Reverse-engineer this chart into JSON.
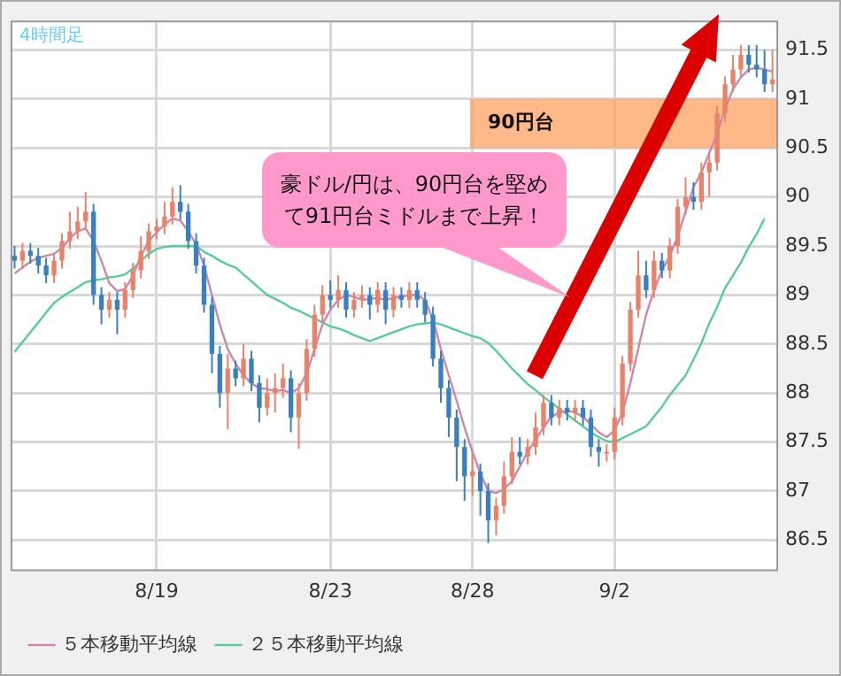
{
  "chart_data": {
    "type": "candlestick",
    "title": "4時間足",
    "categories": [
      null,
      null,
      null,
      null,
      null,
      null,
      null,
      null,
      null,
      null,
      null,
      null,
      null,
      null,
      null,
      null,
      null,
      null,
      "8/19",
      null,
      null,
      null,
      null,
      null,
      null,
      null,
      null,
      null,
      null,
      null,
      null,
      null,
      null,
      null,
      null,
      null,
      null,
      null,
      null,
      null,
      "8/23",
      null,
      null,
      null,
      null,
      null,
      null,
      null,
      null,
      null,
      null,
      null,
      null,
      null,
      null,
      null,
      null,
      null,
      "8/28",
      null,
      null,
      null,
      null,
      null,
      null,
      null,
      null,
      null,
      null,
      null,
      null,
      null,
      null,
      null,
      null,
      null,
      "9/2",
      null,
      null,
      null,
      null,
      null,
      null,
      null,
      null,
      null,
      null,
      null,
      null,
      null,
      null,
      null,
      null,
      null,
      null,
      null,
      null
    ],
    "colors": [
      "#3a7fc0",
      "#e8826a",
      "#3a7fc0",
      "#3a7fc0",
      "#3a7fc0",
      "#e8826a",
      "#e8826a",
      "#e8826a",
      "#e8826a",
      "#e8826a",
      "#3a7fc0",
      "#3a7fc0",
      "#e8826a",
      "#3a7fc0",
      "#e8826a",
      "#e8826a",
      "#e8826a",
      "#e8826a",
      "#e8826a",
      "#e8826a",
      "#e8826a",
      "#3a7fc0",
      "#3a7fc0",
      "#3a7fc0",
      "#3a7fc0",
      "#3a7fc0",
      "#3a7fc0",
      "#e8826a",
      "#3a7fc0",
      "#e8826a",
      "#3a7fc0",
      "#3a7fc0",
      "#e8826a",
      "#e8826a",
      "#e8826a",
      "#3a7fc0",
      "#e8826a",
      "#e8826a",
      "#e8826a",
      "#e8826a",
      "#3a7fc0",
      "#e8826a",
      "#3a7fc0",
      "#e8826a",
      "#e8826a",
      "#3a7fc0",
      "#e8826a",
      "#3a7fc0",
      "#e8826a",
      "#3a7fc0",
      "#e8826a",
      "#3a7fc0",
      "#3a7fc0",
      "#3a7fc0",
      "#3a7fc0",
      "#3a7fc0",
      "#3a7fc0",
      "#3a7fc0",
      "#e8826a",
      "#3a7fc0",
      "#3a7fc0",
      "#e8826a",
      "#e8826a",
      "#e8826a",
      "#3a7fc0",
      "#e8826a",
      "#e8826a",
      "#e8826a",
      "#3a7fc0",
      "#e8826a",
      "#3a7fc0",
      "#e8826a",
      "#3a7fc0",
      "#3a7fc0",
      "#3a7fc0",
      "#e8826a",
      "#e8826a",
      "#e8826a",
      "#e8826a",
      "#e8826a",
      "#3a7fc0",
      "#e8826a",
      "#3a7fc0",
      "#e8826a",
      "#e8826a",
      "#e8826a",
      "#3a7fc0",
      "#e8826a",
      "#e8826a",
      "#e8826a",
      "#e8826a",
      "#e8826a",
      "#e8826a",
      "#3a7fc0",
      "#3a7fc0",
      "#3a7fc0",
      "#e8826a"
    ],
    "ohlc": [
      [
        89.4,
        89.5,
        89.27,
        89.35
      ],
      [
        89.35,
        89.53,
        89.27,
        89.45
      ],
      [
        89.45,
        89.53,
        89.32,
        89.4
      ],
      [
        89.4,
        89.48,
        89.22,
        89.3
      ],
      [
        89.3,
        89.38,
        89.12,
        89.2
      ],
      [
        89.2,
        89.43,
        89.12,
        89.35
      ],
      [
        89.35,
        89.63,
        89.27,
        89.55
      ],
      [
        89.55,
        89.85,
        89.47,
        89.65
      ],
      [
        89.65,
        89.9,
        89.57,
        89.75
      ],
      [
        89.75,
        90.05,
        89.67,
        89.85
      ],
      [
        89.85,
        89.93,
        88.9,
        89.0
      ],
      [
        89.0,
        89.08,
        88.7,
        88.85
      ],
      [
        88.85,
        89.03,
        88.77,
        88.95
      ],
      [
        88.95,
        89.03,
        88.6,
        88.85
      ],
      [
        88.85,
        89.13,
        88.77,
        89.05
      ],
      [
        89.05,
        89.33,
        88.97,
        89.25
      ],
      [
        89.25,
        89.6,
        89.17,
        89.45
      ],
      [
        89.45,
        89.73,
        89.37,
        89.65
      ],
      [
        89.65,
        89.78,
        89.57,
        89.7
      ],
      [
        89.7,
        89.95,
        89.62,
        89.8
      ],
      [
        89.8,
        90.1,
        89.72,
        89.95
      ],
      [
        89.95,
        90.12,
        89.77,
        89.85
      ],
      [
        89.85,
        89.93,
        89.47,
        89.55
      ],
      [
        89.55,
        89.63,
        89.22,
        89.3
      ],
      [
        89.3,
        89.38,
        88.82,
        88.9
      ],
      [
        88.9,
        88.98,
        88.2,
        88.4
      ],
      [
        88.4,
        88.48,
        87.85,
        88.0
      ],
      [
        88.0,
        88.4,
        87.63,
        88.25
      ],
      [
        88.25,
        88.33,
        88.07,
        88.15
      ],
      [
        88.15,
        88.5,
        88.07,
        88.35
      ],
      [
        88.35,
        88.43,
        88.02,
        88.1
      ],
      [
        88.1,
        88.18,
        87.7,
        87.85
      ],
      [
        87.85,
        88.15,
        87.77,
        88.0
      ],
      [
        88.0,
        88.2,
        87.8,
        88.05
      ],
      [
        88.05,
        88.3,
        87.95,
        88.15
      ],
      [
        88.15,
        88.23,
        87.6,
        87.75
      ],
      [
        87.75,
        88.1,
        87.43,
        88.0
      ],
      [
        88.0,
        88.55,
        87.92,
        88.45
      ],
      [
        88.45,
        88.9,
        88.37,
        88.8
      ],
      [
        88.8,
        89.1,
        88.72,
        89.0
      ],
      [
        89.0,
        89.15,
        88.87,
        88.95
      ],
      [
        88.95,
        89.2,
        88.87,
        89.05
      ],
      [
        89.05,
        89.13,
        88.77,
        88.85
      ],
      [
        88.85,
        89.03,
        88.77,
        88.95
      ],
      [
        88.95,
        89.1,
        88.87,
        89.0
      ],
      [
        89.0,
        89.08,
        88.75,
        88.9
      ],
      [
        88.9,
        89.13,
        88.82,
        89.05
      ],
      [
        89.05,
        89.13,
        88.7,
        88.85
      ],
      [
        88.85,
        89.08,
        88.77,
        89.0
      ],
      [
        89.0,
        89.08,
        88.87,
        88.95
      ],
      [
        88.95,
        89.13,
        88.87,
        89.05
      ],
      [
        89.05,
        89.13,
        88.87,
        88.95
      ],
      [
        88.95,
        89.03,
        88.72,
        88.8
      ],
      [
        88.8,
        88.88,
        88.27,
        88.35
      ],
      [
        88.35,
        88.43,
        87.9,
        88.05
      ],
      [
        88.05,
        88.13,
        87.55,
        87.75
      ],
      [
        87.75,
        87.83,
        87.1,
        87.45
      ],
      [
        87.45,
        87.53,
        86.9,
        87.15
      ],
      [
        87.15,
        87.4,
        86.95,
        87.2
      ],
      [
        87.2,
        87.28,
        86.75,
        87.0
      ],
      [
        87.0,
        87.08,
        86.47,
        86.7
      ],
      [
        86.7,
        86.93,
        86.55,
        86.85
      ],
      [
        86.85,
        87.3,
        86.77,
        87.15
      ],
      [
        87.15,
        87.55,
        87.07,
        87.4
      ],
      [
        87.4,
        87.55,
        87.27,
        87.35
      ],
      [
        87.35,
        87.53,
        87.27,
        87.45
      ],
      [
        87.45,
        87.8,
        87.37,
        87.65
      ],
      [
        87.65,
        87.98,
        87.57,
        87.9
      ],
      [
        87.9,
        87.98,
        87.67,
        87.75
      ],
      [
        87.75,
        87.93,
        87.67,
        87.85
      ],
      [
        87.85,
        87.93,
        87.72,
        87.8
      ],
      [
        87.8,
        87.93,
        87.72,
        87.85
      ],
      [
        87.85,
        87.93,
        87.67,
        87.75
      ],
      [
        87.75,
        87.83,
        87.35,
        87.45
      ],
      [
        87.45,
        87.53,
        87.25,
        87.4
      ],
      [
        87.4,
        87.48,
        87.3,
        87.4
      ],
      [
        87.4,
        87.85,
        87.32,
        87.75
      ],
      [
        87.75,
        88.38,
        87.67,
        88.3
      ],
      [
        88.3,
        88.93,
        88.22,
        88.85
      ],
      [
        88.85,
        89.45,
        88.77,
        89.2
      ],
      [
        89.2,
        89.35,
        88.97,
        89.05
      ],
      [
        89.05,
        89.45,
        88.97,
        89.35
      ],
      [
        89.35,
        89.43,
        89.17,
        89.25
      ],
      [
        89.25,
        89.58,
        89.17,
        89.5
      ],
      [
        89.5,
        89.98,
        89.42,
        89.9
      ],
      [
        89.9,
        90.2,
        89.82,
        90.0
      ],
      [
        90.0,
        90.15,
        89.87,
        89.95
      ],
      [
        89.95,
        90.35,
        89.87,
        90.25
      ],
      [
        90.25,
        90.43,
        90.0,
        90.35
      ],
      [
        90.35,
        90.93,
        90.27,
        90.85
      ],
      [
        90.85,
        91.23,
        90.77,
        91.15
      ],
      [
        91.15,
        91.45,
        91.07,
        91.3
      ],
      [
        91.3,
        91.55,
        91.22,
        91.45
      ],
      [
        91.45,
        91.55,
        91.27,
        91.35
      ],
      [
        91.35,
        91.55,
        91.22,
        91.3
      ],
      [
        91.3,
        91.5,
        91.07,
        91.15
      ],
      [
        91.15,
        91.5,
        91.07,
        91.2
      ]
    ],
    "series": [
      {
        "type": "line",
        "name": "５本移動平均線",
        "color": "#cc88aa",
        "values": [
          89.22,
          89.28,
          89.34,
          89.38,
          89.4,
          89.42,
          89.48,
          89.58,
          89.65,
          89.68,
          89.55,
          89.35,
          89.12,
          89.04,
          89.06,
          89.2,
          89.4,
          89.55,
          89.64,
          89.72,
          89.78,
          89.76,
          89.65,
          89.52,
          89.3,
          89.0,
          88.7,
          88.45,
          88.3,
          88.18,
          88.1,
          88.05,
          88.04,
          88.02,
          88.03,
          88.0,
          88.05,
          88.2,
          88.45,
          88.7,
          88.85,
          88.95,
          89.0,
          88.98,
          88.95,
          88.96,
          88.97,
          88.95,
          88.97,
          88.98,
          89.0,
          89.0,
          88.95,
          88.75,
          88.45,
          88.18,
          87.92,
          87.65,
          87.4,
          87.18,
          87.0,
          86.98,
          87.02,
          87.1,
          87.25,
          87.4,
          87.52,
          87.65,
          87.76,
          87.8,
          87.82,
          87.8,
          87.76,
          87.68,
          87.6,
          87.55,
          87.62,
          87.8,
          88.1,
          88.45,
          88.8,
          89.05,
          89.25,
          89.4,
          89.6,
          89.85,
          90.1,
          90.25,
          90.45,
          90.65,
          90.9,
          91.1,
          91.22,
          91.3,
          91.32,
          91.3,
          91.28
        ]
      },
      {
        "type": "line",
        "name": "２５本移動平均線",
        "color": "#55cc99",
        "values": [
          88.42,
          88.52,
          88.62,
          88.72,
          88.82,
          88.92,
          88.98,
          89.03,
          89.08,
          89.13,
          89.15,
          89.16,
          89.18,
          89.19,
          89.21,
          89.27,
          89.35,
          89.42,
          89.47,
          89.49,
          89.5,
          89.5,
          89.5,
          89.5,
          89.44,
          89.4,
          89.35,
          89.31,
          89.28,
          89.21,
          89.14,
          89.07,
          89.0,
          88.96,
          88.92,
          88.87,
          88.84,
          88.8,
          88.76,
          88.72,
          88.68,
          88.66,
          88.63,
          88.59,
          88.56,
          88.53,
          88.56,
          88.59,
          88.62,
          88.65,
          88.68,
          88.7,
          88.71,
          88.72,
          88.7,
          88.67,
          88.64,
          88.61,
          88.58,
          88.56,
          88.51,
          88.43,
          88.34,
          88.25,
          88.17,
          88.09,
          88.03,
          87.96,
          87.9,
          87.84,
          87.78,
          87.72,
          87.66,
          87.6,
          87.55,
          87.51,
          87.5,
          87.54,
          87.58,
          87.62,
          87.66,
          87.76,
          87.86,
          87.98,
          88.08,
          88.18,
          88.34,
          88.51,
          88.71,
          88.88,
          89.07,
          89.2,
          89.33,
          89.49,
          89.62,
          89.78,
          null
        ]
      }
    ],
    "ylim": [
      86.2,
      91.8
    ],
    "yticks": [
      86.5,
      87,
      87.5,
      88,
      88.5,
      89,
      89.5,
      90,
      90.5,
      91,
      91.5
    ],
    "grid": true,
    "legend": "bottom left",
    "bands": [
      {
        "axis": "y",
        "from": 90.5,
        "to": 91,
        "label": "90円台",
        "color": "#ffa060"
      }
    ],
    "annotations": [
      "豪ドル/円は、90円台を堅めて91円台ミドルまで上昇！"
    ]
  }
}
